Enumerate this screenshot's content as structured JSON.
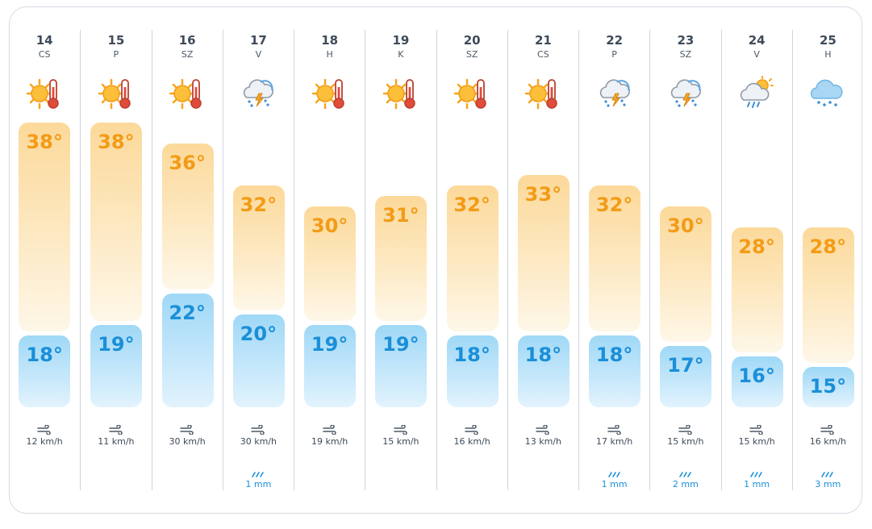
{
  "days": [
    {
      "day": "14",
      "dow": "CS",
      "icon": "sun-thermometer-icon",
      "max": "38°",
      "min": "18°",
      "max_c": 38,
      "min_c": 18,
      "wind": "12 km/h",
      "rain": ""
    },
    {
      "day": "15",
      "dow": "P",
      "icon": "sun-thermometer-icon",
      "max": "38°",
      "min": "19°",
      "max_c": 38,
      "min_c": 19,
      "wind": "11 km/h",
      "rain": ""
    },
    {
      "day": "16",
      "dow": "SZ",
      "icon": "sun-thermometer-icon",
      "max": "36°",
      "min": "22°",
      "max_c": 36,
      "min_c": 22,
      "wind": "30 km/h",
      "rain": ""
    },
    {
      "day": "17",
      "dow": "V",
      "icon": "thunderstorm-icon",
      "max": "32°",
      "min": "20°",
      "max_c": 32,
      "min_c": 20,
      "wind": "30 km/h",
      "rain": "1 mm"
    },
    {
      "day": "18",
      "dow": "H",
      "icon": "sun-thermometer-icon",
      "max": "30°",
      "min": "19°",
      "max_c": 30,
      "min_c": 19,
      "wind": "19 km/h",
      "rain": ""
    },
    {
      "day": "19",
      "dow": "K",
      "icon": "sun-thermometer-icon",
      "max": "31°",
      "min": "19°",
      "max_c": 31,
      "min_c": 19,
      "wind": "15 km/h",
      "rain": ""
    },
    {
      "day": "20",
      "dow": "SZ",
      "icon": "sun-thermometer-icon",
      "max": "32°",
      "min": "18°",
      "max_c": 32,
      "min_c": 18,
      "wind": "16 km/h",
      "rain": ""
    },
    {
      "day": "21",
      "dow": "CS",
      "icon": "sun-thermometer-icon",
      "max": "33°",
      "min": "18°",
      "max_c": 33,
      "min_c": 18,
      "wind": "13 km/h",
      "rain": ""
    },
    {
      "day": "22",
      "dow": "P",
      "icon": "thunderstorm-icon",
      "max": "32°",
      "min": "18°",
      "max_c": 32,
      "min_c": 18,
      "wind": "17 km/h",
      "rain": "1 mm"
    },
    {
      "day": "23",
      "dow": "SZ",
      "icon": "thunderstorm-icon",
      "max": "30°",
      "min": "17°",
      "max_c": 30,
      "min_c": 17,
      "wind": "15 km/h",
      "rain": "2 mm"
    },
    {
      "day": "24",
      "dow": "V",
      "icon": "sun-cloud-rain-icon",
      "max": "28°",
      "min": "16°",
      "max_c": 28,
      "min_c": 16,
      "wind": "15 km/h",
      "rain": "1 mm"
    },
    {
      "day": "25",
      "dow": "H",
      "icon": "cloud-rain-icon",
      "max": "28°",
      "min": "15°",
      "max_c": 28,
      "min_c": 15,
      "wind": "16 km/h",
      "rain": "3 mm"
    }
  ],
  "colors": {
    "max_text": "#f39b16",
    "min_text": "#1b8fd8",
    "max_bar": "#fcd99a",
    "min_bar": "#9fd8f6"
  }
}
